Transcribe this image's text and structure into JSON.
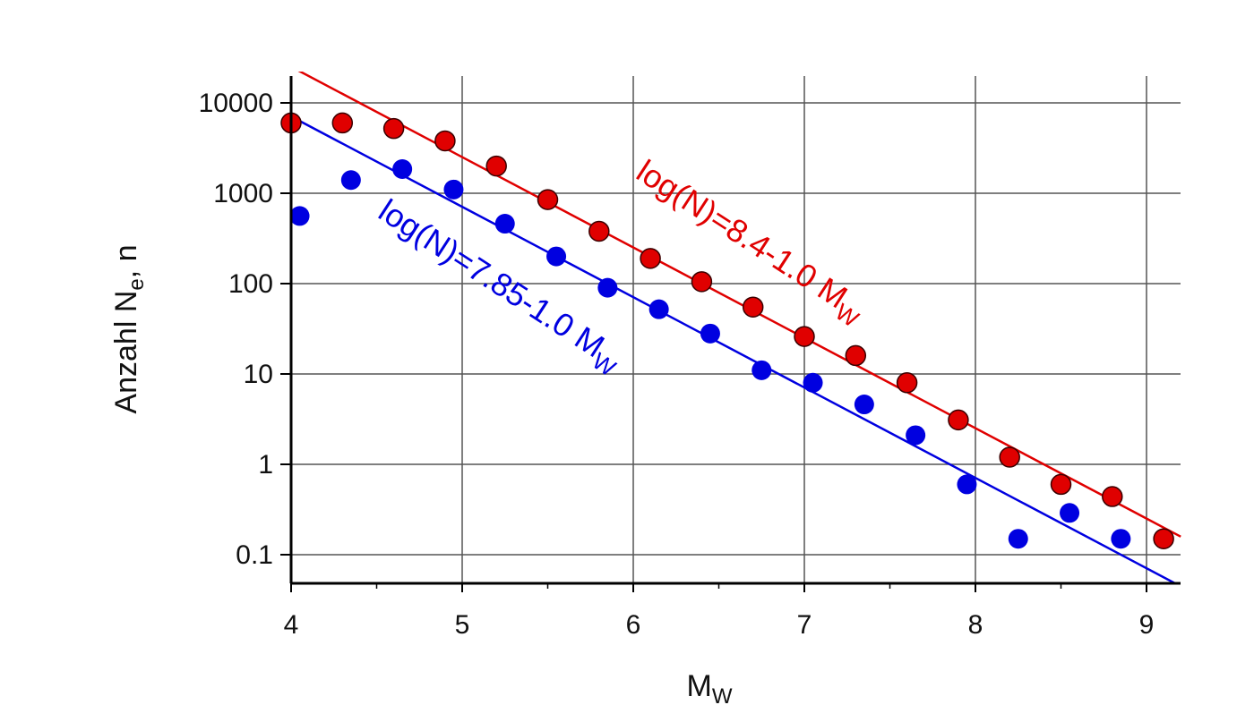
{
  "chart_data": {
    "type": "scatter",
    "y_scale": "log",
    "xlim": [
      4,
      9.2
    ],
    "ylim": [
      0.05,
      20000
    ],
    "grid": true,
    "x_ticks": [
      "4",
      "5",
      "6",
      "7",
      "8",
      "9"
    ],
    "y_ticks": [
      "0.1",
      "1",
      "10",
      "100",
      "1000",
      "10000"
    ],
    "xlabel": {
      "main": "M",
      "sub": "W"
    },
    "ylabel": {
      "main": "Anzahl N",
      "sub": "e",
      "suffix": ", n"
    },
    "series": [
      {
        "color": "#e00000",
        "points": [
          [
            4.0,
            6000
          ],
          [
            4.3,
            6000
          ],
          [
            4.6,
            5200
          ],
          [
            4.9,
            3800
          ],
          [
            5.2,
            2000
          ],
          [
            5.5,
            850
          ],
          [
            5.8,
            380
          ],
          [
            6.1,
            190
          ],
          [
            6.4,
            105
          ],
          [
            6.7,
            55
          ],
          [
            7.0,
            26
          ],
          [
            7.3,
            16
          ],
          [
            7.6,
            8
          ],
          [
            7.9,
            3.1
          ],
          [
            8.2,
            1.2
          ],
          [
            8.5,
            0.6
          ],
          [
            8.8,
            0.44
          ],
          [
            9.1,
            0.15
          ]
        ],
        "fit": {
          "a": 8.4,
          "b": 1.0
        },
        "label": {
          "text": "log(N)=8.4-1.0 M",
          "sub": "W"
        }
      },
      {
        "color": "#0000e0",
        "points": [
          [
            4.05,
            560
          ],
          [
            4.35,
            1400
          ],
          [
            4.65,
            1850
          ],
          [
            4.95,
            1100
          ],
          [
            5.25,
            460
          ],
          [
            5.55,
            200
          ],
          [
            5.85,
            90
          ],
          [
            6.15,
            52
          ],
          [
            6.45,
            28
          ],
          [
            6.75,
            11
          ],
          [
            7.05,
            8
          ],
          [
            7.35,
            4.6
          ],
          [
            7.65,
            2.1
          ],
          [
            7.95,
            0.6
          ],
          [
            8.25,
            0.15
          ],
          [
            8.55,
            0.29
          ],
          [
            8.85,
            0.15
          ]
        ],
        "fit": {
          "a": 7.85,
          "b": 1.0
        },
        "label": {
          "text": "log(N)=7.85-1.0 M",
          "sub": "W"
        }
      }
    ]
  }
}
